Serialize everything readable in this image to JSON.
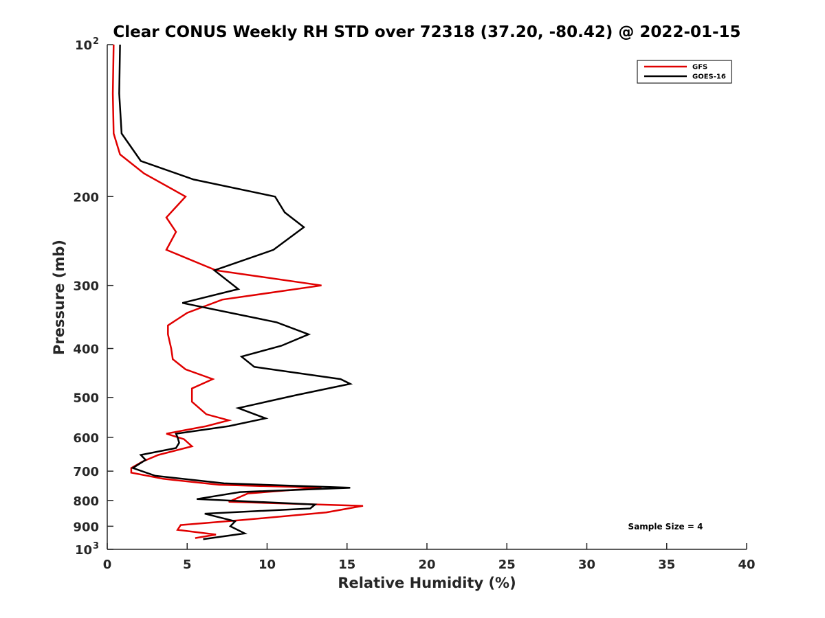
{
  "chart_data": {
    "type": "line",
    "title": "Clear CONUS Weekly RH STD over 72318 (37.20, -80.42) @ 2022-01-15",
    "xlabel": "Relative Humidity (%)",
    "ylabel": "Pressure (mb)",
    "xlim": [
      0,
      40
    ],
    "ylim": [
      100,
      1000
    ],
    "y_scale": "log",
    "y_reversed": true,
    "x_ticks": [
      "0",
      "5",
      "10",
      "15",
      "20",
      "25",
      "30",
      "35",
      "40"
    ],
    "y_ticks": [
      {
        "value": 100,
        "label": "10",
        "sup": "2"
      },
      {
        "value": 200,
        "label": "200",
        "sup": ""
      },
      {
        "value": 300,
        "label": "300",
        "sup": ""
      },
      {
        "value": 400,
        "label": "400",
        "sup": ""
      },
      {
        "value": 500,
        "label": "500",
        "sup": ""
      },
      {
        "value": 600,
        "label": "600",
        "sup": ""
      },
      {
        "value": 700,
        "label": "700",
        "sup": ""
      },
      {
        "value": 800,
        "label": "800",
        "sup": ""
      },
      {
        "value": 900,
        "label": "900",
        "sup": ""
      },
      {
        "value": 1000,
        "label": "10",
        "sup": "3"
      }
    ],
    "grid": false,
    "legend_position": "top-right",
    "annotation": "Sample Size = 4",
    "series": [
      {
        "name": "GFS",
        "color": "#e00000",
        "points": [
          [
            0.4,
            100
          ],
          [
            0.35,
            125
          ],
          [
            0.4,
            150
          ],
          [
            0.8,
            165
          ],
          [
            2.3,
            180
          ],
          [
            4.9,
            200
          ],
          [
            3.7,
            220
          ],
          [
            4.3,
            235
          ],
          [
            3.7,
            255
          ],
          [
            6.8,
            280
          ],
          [
            13.4,
            300
          ],
          [
            7.2,
            320
          ],
          [
            5.0,
            340
          ],
          [
            3.8,
            360
          ],
          [
            3.8,
            375
          ],
          [
            4.0,
            400
          ],
          [
            4.1,
            420
          ],
          [
            4.9,
            440
          ],
          [
            6.6,
            460
          ],
          [
            5.3,
            480
          ],
          [
            5.3,
            510
          ],
          [
            6.2,
            540
          ],
          [
            7.6,
            555
          ],
          [
            6.2,
            570
          ],
          [
            3.7,
            590
          ],
          [
            4.8,
            605
          ],
          [
            5.3,
            625
          ],
          [
            3.2,
            650
          ],
          [
            2.2,
            670
          ],
          [
            1.5,
            690
          ],
          [
            1.5,
            705
          ],
          [
            3.5,
            725
          ],
          [
            7.0,
            745
          ],
          [
            13.4,
            755
          ],
          [
            8.8,
            775
          ],
          [
            7.6,
            805
          ],
          [
            16.0,
            820
          ],
          [
            13.7,
            845
          ],
          [
            8.4,
            875
          ],
          [
            4.6,
            895
          ],
          [
            4.4,
            915
          ],
          [
            6.8,
            935
          ],
          [
            5.5,
            950
          ]
        ]
      },
      {
        "name": "GOES-16",
        "color": "#000000",
        "points": [
          [
            0.8,
            100
          ],
          [
            0.75,
            125
          ],
          [
            0.9,
            150
          ],
          [
            2.1,
            170
          ],
          [
            5.4,
            185
          ],
          [
            10.5,
            200
          ],
          [
            11.1,
            215
          ],
          [
            12.3,
            230
          ],
          [
            10.4,
            255
          ],
          [
            6.7,
            280
          ],
          [
            8.2,
            305
          ],
          [
            4.7,
            325
          ],
          [
            10.6,
            355
          ],
          [
            12.6,
            375
          ],
          [
            10.9,
            395
          ],
          [
            8.4,
            415
          ],
          [
            9.2,
            435
          ],
          [
            14.6,
            460
          ],
          [
            15.2,
            470
          ],
          [
            11.8,
            495
          ],
          [
            8.2,
            525
          ],
          [
            9.9,
            550
          ],
          [
            7.6,
            570
          ],
          [
            4.3,
            590
          ],
          [
            4.4,
            600
          ],
          [
            4.5,
            615
          ],
          [
            4.3,
            630
          ],
          [
            2.1,
            650
          ],
          [
            2.4,
            665
          ],
          [
            1.6,
            690
          ],
          [
            3.0,
            715
          ],
          [
            7.3,
            740
          ],
          [
            15.2,
            755
          ],
          [
            8.3,
            770
          ],
          [
            5.6,
            795
          ],
          [
            13.0,
            815
          ],
          [
            12.7,
            830
          ],
          [
            6.1,
            850
          ],
          [
            8.0,
            880
          ],
          [
            7.7,
            900
          ],
          [
            8.6,
            930
          ],
          [
            6.0,
            955
          ]
        ]
      }
    ]
  }
}
